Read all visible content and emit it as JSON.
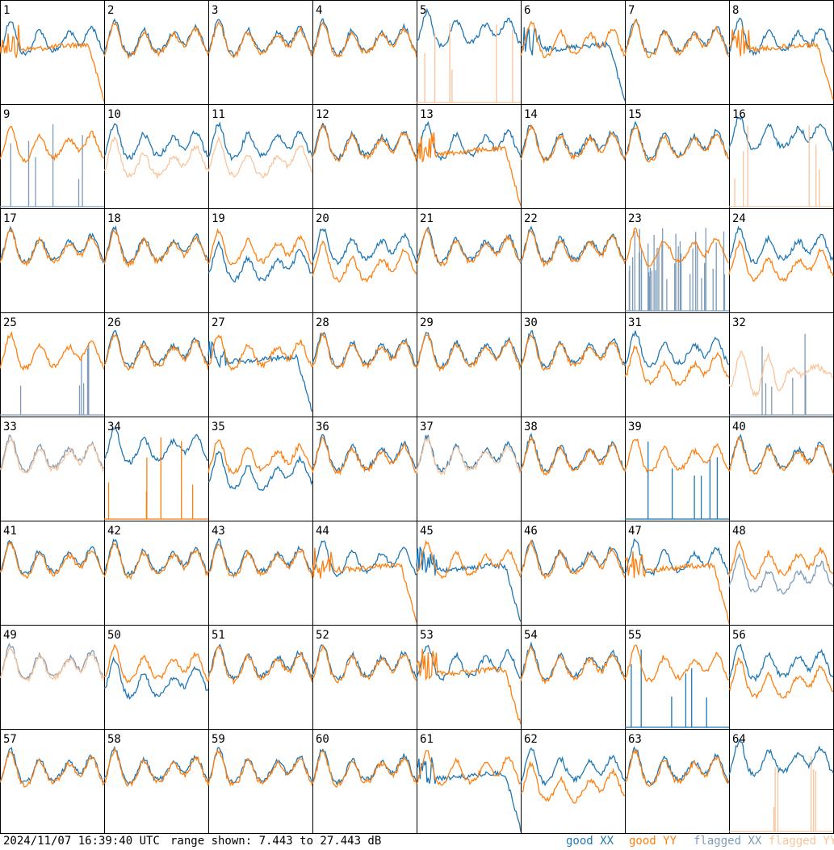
{
  "footer": {
    "timestamp": "2024/11/07 16:39:40 UTC",
    "range_text": "range shown: 7.443 to 27.443 dB"
  },
  "legend": {
    "good_xx": "good XX",
    "good_yy": "good YY",
    "flagged_xx": "flagged XX",
    "flagged_yy": "flagged YY"
  },
  "colors": {
    "good_xx": "#1f77b4",
    "good_yy": "#ff7f0e",
    "flagged_xx": "#7d9bb8",
    "flagged_yy": "#f9c49a"
  },
  "chart_data": {
    "type": "line",
    "layout": "8x8 small multiples of per-tile spectra",
    "y_range_db": [
      7.443,
      27.443
    ],
    "panels": [
      {
        "label": "1",
        "xx": "good",
        "yy": "good",
        "xx_shape": "normal",
        "yy_shape": "droop"
      },
      {
        "label": "2",
        "xx": "good",
        "yy": "good",
        "xx_shape": "normal",
        "yy_shape": "normal"
      },
      {
        "label": "3",
        "xx": "good",
        "yy": "good",
        "xx_shape": "normal",
        "yy_shape": "normal"
      },
      {
        "label": "4",
        "xx": "good",
        "yy": "good",
        "xx_shape": "normal",
        "yy_shape": "normal"
      },
      {
        "label": "5",
        "xx": "good",
        "yy": "flagged",
        "xx_shape": "high",
        "yy_shape": "spikes"
      },
      {
        "label": "6",
        "xx": "good",
        "yy": "good",
        "xx_shape": "droop",
        "yy_shape": "normal"
      },
      {
        "label": "7",
        "xx": "good",
        "yy": "good",
        "xx_shape": "normal",
        "yy_shape": "normal"
      },
      {
        "label": "8",
        "xx": "good",
        "yy": "good",
        "xx_shape": "normal",
        "yy_shape": "droop"
      },
      {
        "label": "9",
        "xx": "flagged",
        "yy": "good",
        "xx_shape": "spikes",
        "yy_shape": "normal"
      },
      {
        "label": "10",
        "xx": "good",
        "yy": "flagged",
        "xx_shape": "normal",
        "yy_shape": "low"
      },
      {
        "label": "11",
        "xx": "good",
        "yy": "flagged",
        "xx_shape": "normal",
        "yy_shape": "low"
      },
      {
        "label": "12",
        "xx": "good",
        "yy": "good",
        "xx_shape": "normal",
        "yy_shape": "normal"
      },
      {
        "label": "13",
        "xx": "good",
        "yy": "good",
        "xx_shape": "normal",
        "yy_shape": "droop"
      },
      {
        "label": "14",
        "xx": "good",
        "yy": "good",
        "xx_shape": "normal",
        "yy_shape": "normal"
      },
      {
        "label": "15",
        "xx": "good",
        "yy": "good",
        "xx_shape": "normal",
        "yy_shape": "normal"
      },
      {
        "label": "16",
        "xx": "good",
        "yy": "flagged",
        "xx_shape": "high",
        "yy_shape": "spikes"
      },
      {
        "label": "17",
        "xx": "good",
        "yy": "good",
        "xx_shape": "normal",
        "yy_shape": "normal"
      },
      {
        "label": "18",
        "xx": "good",
        "yy": "good",
        "xx_shape": "normal",
        "yy_shape": "normal"
      },
      {
        "label": "19",
        "xx": "good",
        "yy": "good",
        "xx_shape": "low",
        "yy_shape": "normal"
      },
      {
        "label": "20",
        "xx": "good",
        "yy": "good",
        "xx_shape": "normal",
        "yy_shape": "low"
      },
      {
        "label": "21",
        "xx": "good",
        "yy": "good",
        "xx_shape": "normal",
        "yy_shape": "normal"
      },
      {
        "label": "22",
        "xx": "good",
        "yy": "good",
        "xx_shape": "normal",
        "yy_shape": "normal"
      },
      {
        "label": "23",
        "xx": "flagged",
        "yy": "good",
        "xx_shape": "noise",
        "yy_shape": "normal"
      },
      {
        "label": "24",
        "xx": "good",
        "yy": "good",
        "xx_shape": "normal",
        "yy_shape": "low"
      },
      {
        "label": "25",
        "xx": "flagged",
        "yy": "good",
        "xx_shape": "spikes",
        "yy_shape": "normal"
      },
      {
        "label": "26",
        "xx": "good",
        "yy": "good",
        "xx_shape": "normal",
        "yy_shape": "normal"
      },
      {
        "label": "27",
        "xx": "good",
        "yy": "good",
        "xx_shape": "droop",
        "yy_shape": "normal"
      },
      {
        "label": "28",
        "xx": "good",
        "yy": "good",
        "xx_shape": "normal",
        "yy_shape": "normal"
      },
      {
        "label": "29",
        "xx": "good",
        "yy": "good",
        "xx_shape": "normal",
        "yy_shape": "normal"
      },
      {
        "label": "30",
        "xx": "good",
        "yy": "good",
        "xx_shape": "normal",
        "yy_shape": "normal"
      },
      {
        "label": "31",
        "xx": "good",
        "yy": "good",
        "xx_shape": "normal",
        "yy_shape": "low"
      },
      {
        "label": "32",
        "xx": "flagged",
        "yy": "flagged",
        "xx_shape": "spikes",
        "yy_shape": "wild"
      },
      {
        "label": "33",
        "xx": "flagged",
        "yy": "flagged",
        "xx_shape": "normal",
        "yy_shape": "normal"
      },
      {
        "label": "34",
        "xx": "good",
        "yy": "good",
        "xx_shape": "high",
        "yy_shape": "spikes"
      },
      {
        "label": "35",
        "xx": "good",
        "yy": "good",
        "xx_shape": "low",
        "yy_shape": "normal"
      },
      {
        "label": "36",
        "xx": "good",
        "yy": "good",
        "xx_shape": "normal",
        "yy_shape": "normal"
      },
      {
        "label": "37",
        "xx": "good",
        "yy": "flagged",
        "xx_shape": "normal",
        "yy_shape": "normal"
      },
      {
        "label": "38",
        "xx": "good",
        "yy": "good",
        "xx_shape": "normal",
        "yy_shape": "normal"
      },
      {
        "label": "39",
        "xx": "good",
        "yy": "good",
        "xx_shape": "spikes",
        "yy_shape": "normal"
      },
      {
        "label": "40",
        "xx": "good",
        "yy": "good",
        "xx_shape": "normal",
        "yy_shape": "normal"
      },
      {
        "label": "41",
        "xx": "good",
        "yy": "good",
        "xx_shape": "normal",
        "yy_shape": "normal"
      },
      {
        "label": "42",
        "xx": "good",
        "yy": "good",
        "xx_shape": "normal",
        "yy_shape": "normal"
      },
      {
        "label": "43",
        "xx": "good",
        "yy": "good",
        "xx_shape": "normal",
        "yy_shape": "normal"
      },
      {
        "label": "44",
        "xx": "good",
        "yy": "good",
        "xx_shape": "normal",
        "yy_shape": "droop"
      },
      {
        "label": "45",
        "xx": "good",
        "yy": "good",
        "xx_shape": "droop",
        "yy_shape": "normal"
      },
      {
        "label": "46",
        "xx": "good",
        "yy": "good",
        "xx_shape": "normal",
        "yy_shape": "normal"
      },
      {
        "label": "47",
        "xx": "good",
        "yy": "good",
        "xx_shape": "normal",
        "yy_shape": "droop"
      },
      {
        "label": "48",
        "xx": "flagged",
        "yy": "good",
        "xx_shape": "low",
        "yy_shape": "normal"
      },
      {
        "label": "49",
        "xx": "flagged",
        "yy": "flagged",
        "xx_shape": "normal",
        "yy_shape": "normal"
      },
      {
        "label": "50",
        "xx": "good",
        "yy": "good",
        "xx_shape": "low",
        "yy_shape": "normal"
      },
      {
        "label": "51",
        "xx": "good",
        "yy": "good",
        "xx_shape": "normal",
        "yy_shape": "normal"
      },
      {
        "label": "52",
        "xx": "good",
        "yy": "good",
        "xx_shape": "normal",
        "yy_shape": "normal"
      },
      {
        "label": "53",
        "xx": "good",
        "yy": "good",
        "xx_shape": "normal",
        "yy_shape": "droop"
      },
      {
        "label": "54",
        "xx": "good",
        "yy": "good",
        "xx_shape": "normal",
        "yy_shape": "normal"
      },
      {
        "label": "55",
        "xx": "good",
        "yy": "good",
        "xx_shape": "spikes",
        "yy_shape": "normal"
      },
      {
        "label": "56",
        "xx": "good",
        "yy": "good",
        "xx_shape": "normal",
        "yy_shape": "low"
      },
      {
        "label": "57",
        "xx": "good",
        "yy": "good",
        "xx_shape": "normal",
        "yy_shape": "normal"
      },
      {
        "label": "58",
        "xx": "good",
        "yy": "good",
        "xx_shape": "normal",
        "yy_shape": "normal"
      },
      {
        "label": "59",
        "xx": "good",
        "yy": "good",
        "xx_shape": "normal",
        "yy_shape": "normal"
      },
      {
        "label": "60",
        "xx": "good",
        "yy": "good",
        "xx_shape": "normal",
        "yy_shape": "normal"
      },
      {
        "label": "61",
        "xx": "good",
        "yy": "good",
        "xx_shape": "droop",
        "yy_shape": "normal"
      },
      {
        "label": "62",
        "xx": "good",
        "yy": "good",
        "xx_shape": "normal",
        "yy_shape": "low"
      },
      {
        "label": "63",
        "xx": "good",
        "yy": "good",
        "xx_shape": "normal",
        "yy_shape": "normal"
      },
      {
        "label": "64",
        "xx": "good",
        "yy": "flagged",
        "xx_shape": "high",
        "yy_shape": "spikes"
      }
    ]
  }
}
